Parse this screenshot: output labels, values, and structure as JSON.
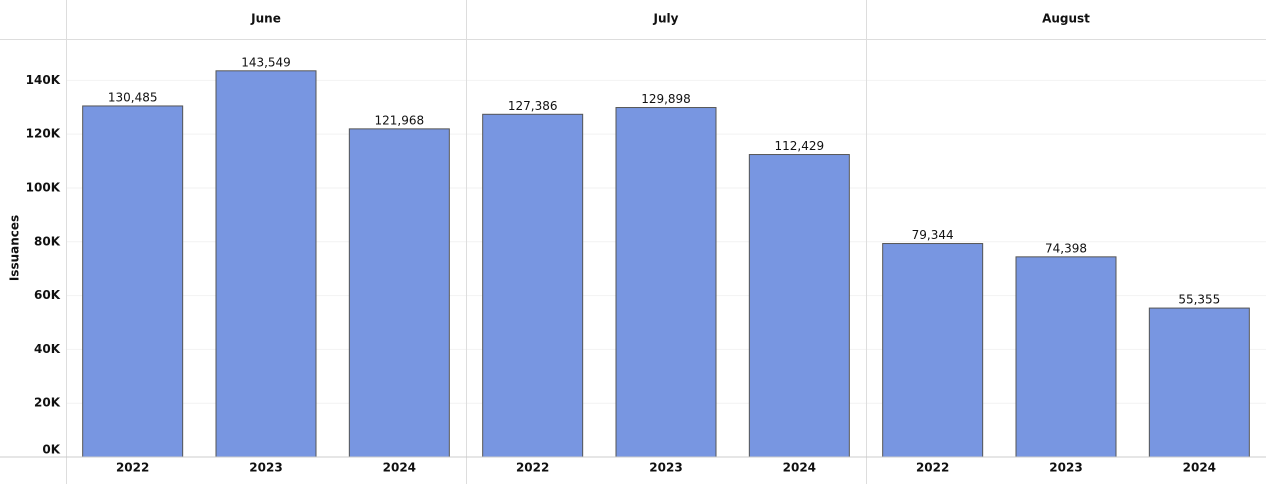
{
  "chart_data": {
    "type": "bar",
    "y_label": "Issuances",
    "color": "#7896e1",
    "grid": true,
    "ylim": [
      0,
      155000
    ],
    "yticks": [
      {
        "value": 0,
        "label": "0K"
      },
      {
        "value": 20000,
        "label": "20K"
      },
      {
        "value": 40000,
        "label": "40K"
      },
      {
        "value": 60000,
        "label": "60K"
      },
      {
        "value": 80000,
        "label": "80K"
      },
      {
        "value": 100000,
        "label": "100K"
      },
      {
        "value": 120000,
        "label": "120K"
      },
      {
        "value": 140000,
        "label": "140K"
      }
    ],
    "groups": [
      {
        "name": "June",
        "categories": [
          "2022",
          "2023",
          "2024"
        ],
        "values": [
          130485,
          143549,
          121968
        ],
        "value_labels": [
          "130,485",
          "143,549",
          "121,968"
        ]
      },
      {
        "name": "July",
        "categories": [
          "2022",
          "2023",
          "2024"
        ],
        "values": [
          127386,
          129898,
          112429
        ],
        "value_labels": [
          "127,386",
          "129,898",
          "112,429"
        ]
      },
      {
        "name": "August",
        "categories": [
          "2022",
          "2023",
          "2024"
        ],
        "values": [
          79344,
          74398,
          55355
        ],
        "value_labels": [
          "79,344",
          "74,398",
          "55,355"
        ]
      }
    ]
  }
}
